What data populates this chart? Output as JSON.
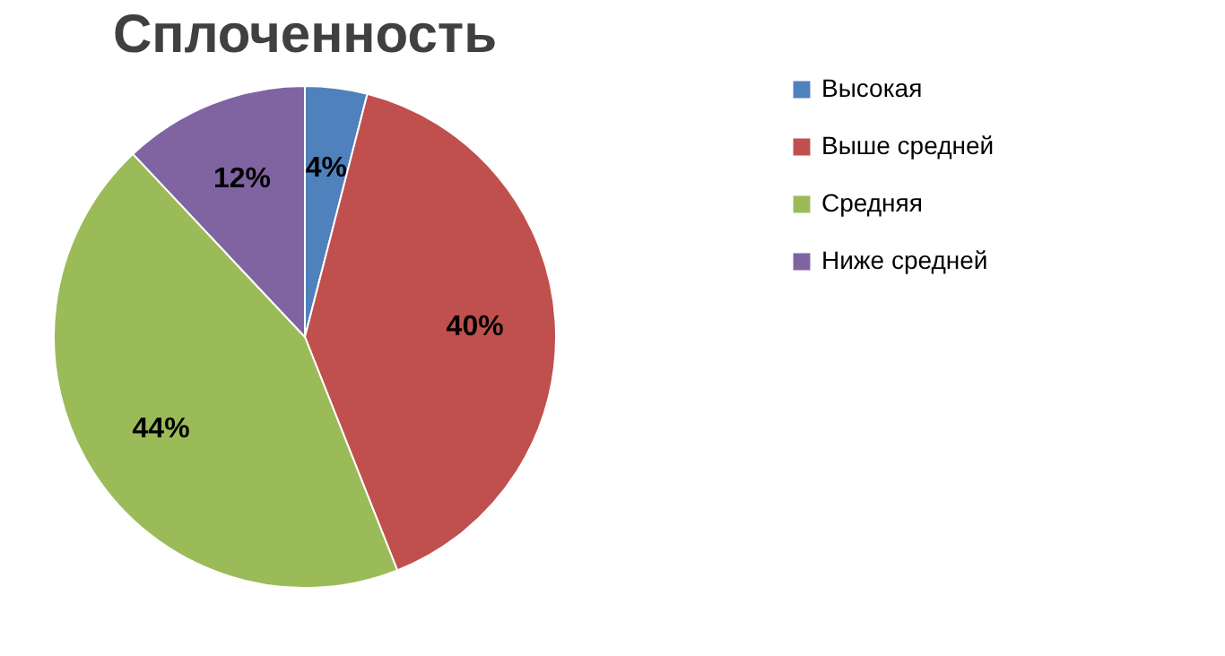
{
  "chart_data": {
    "type": "pie",
    "title": "Сплоченность",
    "categories": [
      "Высокая",
      "Выше средней",
      "Средняя",
      "Ниже средней"
    ],
    "values": [
      4,
      40,
      44,
      12
    ],
    "colors": [
      "#4f81bd",
      "#c0504d",
      "#9bbb59",
      "#8064a2"
    ],
    "value_labels": [
      "4%",
      "40%",
      "44%",
      "12%"
    ],
    "legend": "right"
  }
}
